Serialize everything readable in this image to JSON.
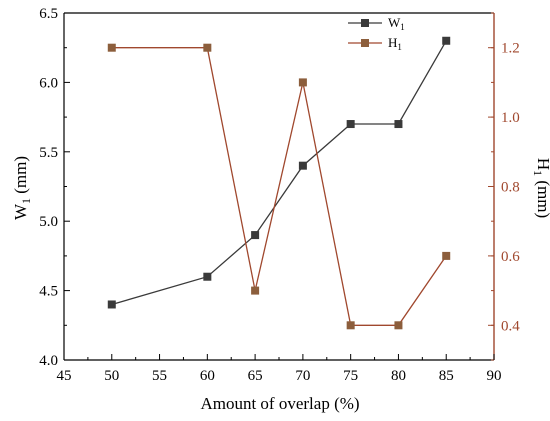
{
  "chart_data": {
    "type": "line",
    "x": [
      50,
      60,
      65,
      70,
      75,
      80,
      85
    ],
    "xlim": [
      45,
      90
    ],
    "xticks": [
      "45",
      "50",
      "55",
      "60",
      "65",
      "70",
      "75",
      "80",
      "85",
      "90"
    ],
    "xlabel": "Amount of overlap (%)",
    "y_left": {
      "label_main": "W",
      "label_sub": "1",
      "label_unit": " (mm)",
      "lim": [
        4.0,
        6.5
      ],
      "ticks": [
        "4.0",
        "4.5",
        "5.0",
        "5.5",
        "6.0",
        "6.5"
      ],
      "color": "#000000"
    },
    "y_right": {
      "label_main": "H",
      "label_sub": "1",
      "label_unit": " (mm)",
      "lim": [
        0.3,
        1.3
      ],
      "ticks": [
        "0.4",
        "0.6",
        "0.8",
        "1.0",
        "1.2"
      ],
      "color": "#a0482e"
    },
    "series": [
      {
        "name_main": "W",
        "name_sub": "1",
        "axis": "left",
        "color": "#3a3a3a",
        "marker": "square",
        "values": [
          4.4,
          4.6,
          4.9,
          5.4,
          5.7,
          5.7,
          6.3
        ]
      },
      {
        "name_main": "H",
        "name_sub": "1",
        "axis": "right",
        "color": "#a0482e",
        "marker_color": "#8c5e3c",
        "marker": "square",
        "values": [
          1.2,
          1.2,
          0.5,
          1.1,
          0.4,
          0.4,
          0.6
        ]
      }
    ],
    "legend_position": "top-right",
    "grid": false
  }
}
